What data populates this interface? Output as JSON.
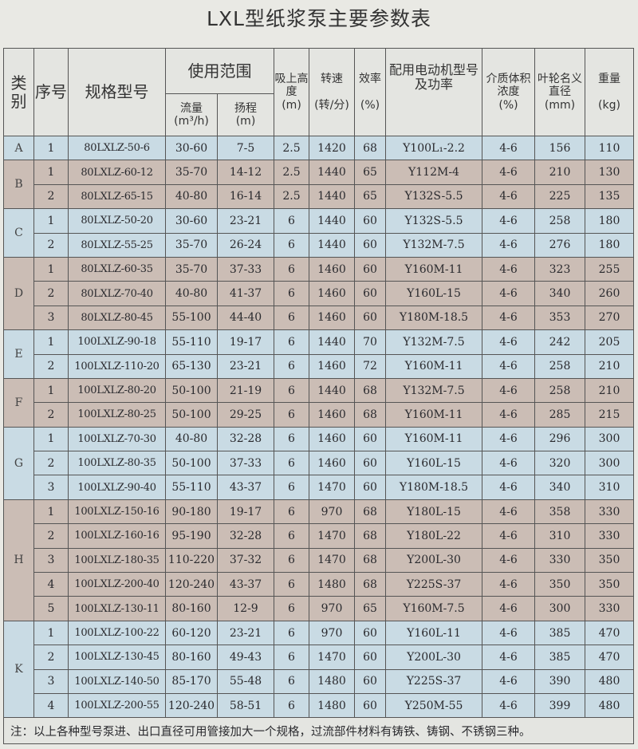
{
  "title": "LXL型纸浆泵主要参数表",
  "headers": {
    "category": "类别",
    "index": "序号",
    "model": "规格型号",
    "usage_range": "使用范围",
    "flow": "流量",
    "flow_unit": "(m³/h)",
    "head": "扬程",
    "head_unit": "(m)",
    "suction": "吸上高度",
    "suction_unit": "(m)",
    "speed": "转速",
    "speed_unit": "(转/分)",
    "efficiency": "效率",
    "efficiency_unit": "(%)",
    "motor": "配用电动机型号及功率",
    "concentration": "介质体积浓度",
    "concentration_unit": "(%)",
    "impeller": "叶轮名义直径",
    "impeller_unit": "(mm)",
    "weight": "重量",
    "weight_unit": "(kg)"
  },
  "row_colors": {
    "blue": "#c9dbe4",
    "tan": "#cbbdb5"
  },
  "groups": [
    {
      "category": "A",
      "color": "blue",
      "rows": [
        [
          "1",
          "80LXLZ-50-6",
          "30-60",
          "7-5",
          "2.5",
          "1420",
          "68",
          "Y100L₁-2.2",
          "4-6",
          "156",
          "110"
        ]
      ]
    },
    {
      "category": "B",
      "color": "tan",
      "rows": [
        [
          "1",
          "80LXLZ-60-12",
          "35-70",
          "14-12",
          "2.5",
          "1440",
          "65",
          "Y112M-4",
          "4-6",
          "210",
          "130"
        ],
        [
          "2",
          "80LXLZ-65-15",
          "40-80",
          "16-14",
          "2.5",
          "1440",
          "65",
          "Y132S-5.5",
          "4-6",
          "225",
          "135"
        ]
      ]
    },
    {
      "category": "C",
      "color": "blue",
      "rows": [
        [
          "1",
          "80LXLZ-50-20",
          "30-60",
          "23-21",
          "6",
          "1440",
          "60",
          "Y132S-5.5",
          "4-6",
          "258",
          "180"
        ],
        [
          "2",
          "80LXLZ-55-25",
          "35-70",
          "26-24",
          "6",
          "1440",
          "60",
          "Y132M-7.5",
          "4-6",
          "276",
          "180"
        ]
      ]
    },
    {
      "category": "D",
      "color": "tan",
      "rows": [
        [
          "1",
          "80LXLZ-60-35",
          "35-70",
          "37-33",
          "6",
          "1460",
          "60",
          "Y160M-11",
          "4-6",
          "323",
          "255"
        ],
        [
          "2",
          "80LXLZ-70-40",
          "40-80",
          "41-37",
          "6",
          "1460",
          "60",
          "Y160L-15",
          "4-6",
          "340",
          "260"
        ],
        [
          "3",
          "80LXLZ-80-45",
          "55-100",
          "44-40",
          "6",
          "1460",
          "60",
          "Y180M-18.5",
          "4-6",
          "353",
          "270"
        ]
      ]
    },
    {
      "category": "E",
      "color": "blue",
      "rows": [
        [
          "1",
          "100LXLZ-90-18",
          "55-110",
          "19-17",
          "6",
          "1440",
          "70",
          "Y132M-7.5",
          "4-6",
          "242",
          "205"
        ],
        [
          "2",
          "100LXLZ-110-20",
          "65-130",
          "23-21",
          "6",
          "1460",
          "72",
          "Y160M-11",
          "4-6",
          "258",
          "210"
        ]
      ]
    },
    {
      "category": "F",
      "color": "tan",
      "rows": [
        [
          "1",
          "100LXLZ-80-20",
          "50-100",
          "21-19",
          "6",
          "1440",
          "68",
          "Y132M-7.5",
          "4-6",
          "258",
          "210"
        ],
        [
          "2",
          "100LXLZ-80-25",
          "50-100",
          "29-25",
          "6",
          "1460",
          "68",
          "Y160M-11",
          "4-6",
          "285",
          "215"
        ]
      ]
    },
    {
      "category": "G",
      "color": "blue",
      "rows": [
        [
          "1",
          "100LXLZ-70-30",
          "40-80",
          "32-28",
          "6",
          "1460",
          "60",
          "Y160M-11",
          "4-6",
          "296",
          "300"
        ],
        [
          "2",
          "100LXLZ-80-35",
          "50-100",
          "37-33",
          "6",
          "1460",
          "60",
          "Y160L-15",
          "4-6",
          "320",
          "300"
        ],
        [
          "3",
          "100LXLZ-90-40",
          "55-110",
          "43-37",
          "6",
          "1470",
          "60",
          "Y180M-18.5",
          "4-6",
          "340",
          "310"
        ]
      ]
    },
    {
      "category": "H",
      "color": "tan",
      "rows": [
        [
          "1",
          "100LXLZ-150-16",
          "90-180",
          "19-17",
          "6",
          "970",
          "68",
          "Y180L-15",
          "4-6",
          "358",
          "330"
        ],
        [
          "2",
          "100LXLZ-160-16",
          "95-190",
          "32-28",
          "6",
          "1470",
          "68",
          "Y180L-22",
          "4-6",
          "310",
          "330"
        ],
        [
          "3",
          "100LXLZ-180-35",
          "110-220",
          "37-32",
          "6",
          "1470",
          "68",
          "Y200L-30",
          "4-6",
          "330",
          "350"
        ],
        [
          "4",
          "100LXLZ-200-40",
          "120-240",
          "43-37",
          "6",
          "1480",
          "68",
          "Y225S-37",
          "4-6",
          "350",
          "350"
        ],
        [
          "5",
          "100LXLZ-130-11",
          "80-160",
          "12-9",
          "6",
          "970",
          "65",
          "Y160M-7.5",
          "4-6",
          "300",
          "330"
        ]
      ]
    },
    {
      "category": "K",
      "color": "blue",
      "rows": [
        [
          "1",
          "100LXLZ-100-22",
          "60-120",
          "23-21",
          "6",
          "970",
          "60",
          "Y160L-11",
          "4-6",
          "385",
          "470"
        ],
        [
          "2",
          "100LXLZ-130-45",
          "80-160",
          "49-43",
          "6",
          "1470",
          "60",
          "Y200L-30",
          "4-6",
          "385",
          "470"
        ],
        [
          "3",
          "100LXLZ-140-50",
          "85-170",
          "55-48",
          "6",
          "1480",
          "60",
          "Y225S-37",
          "4-6",
          "390",
          "480"
        ],
        [
          "4",
          "100LXLZ-200-55",
          "120-240",
          "58-51",
          "6",
          "1480",
          "60",
          "Y250M-55",
          "4-6",
          "399",
          "480"
        ]
      ]
    }
  ],
  "note": "注：以上各种型号泵进、出口直径可用管接加大一个规格，过流部件材料有铸铁、铸钢、不锈钢三种。"
}
